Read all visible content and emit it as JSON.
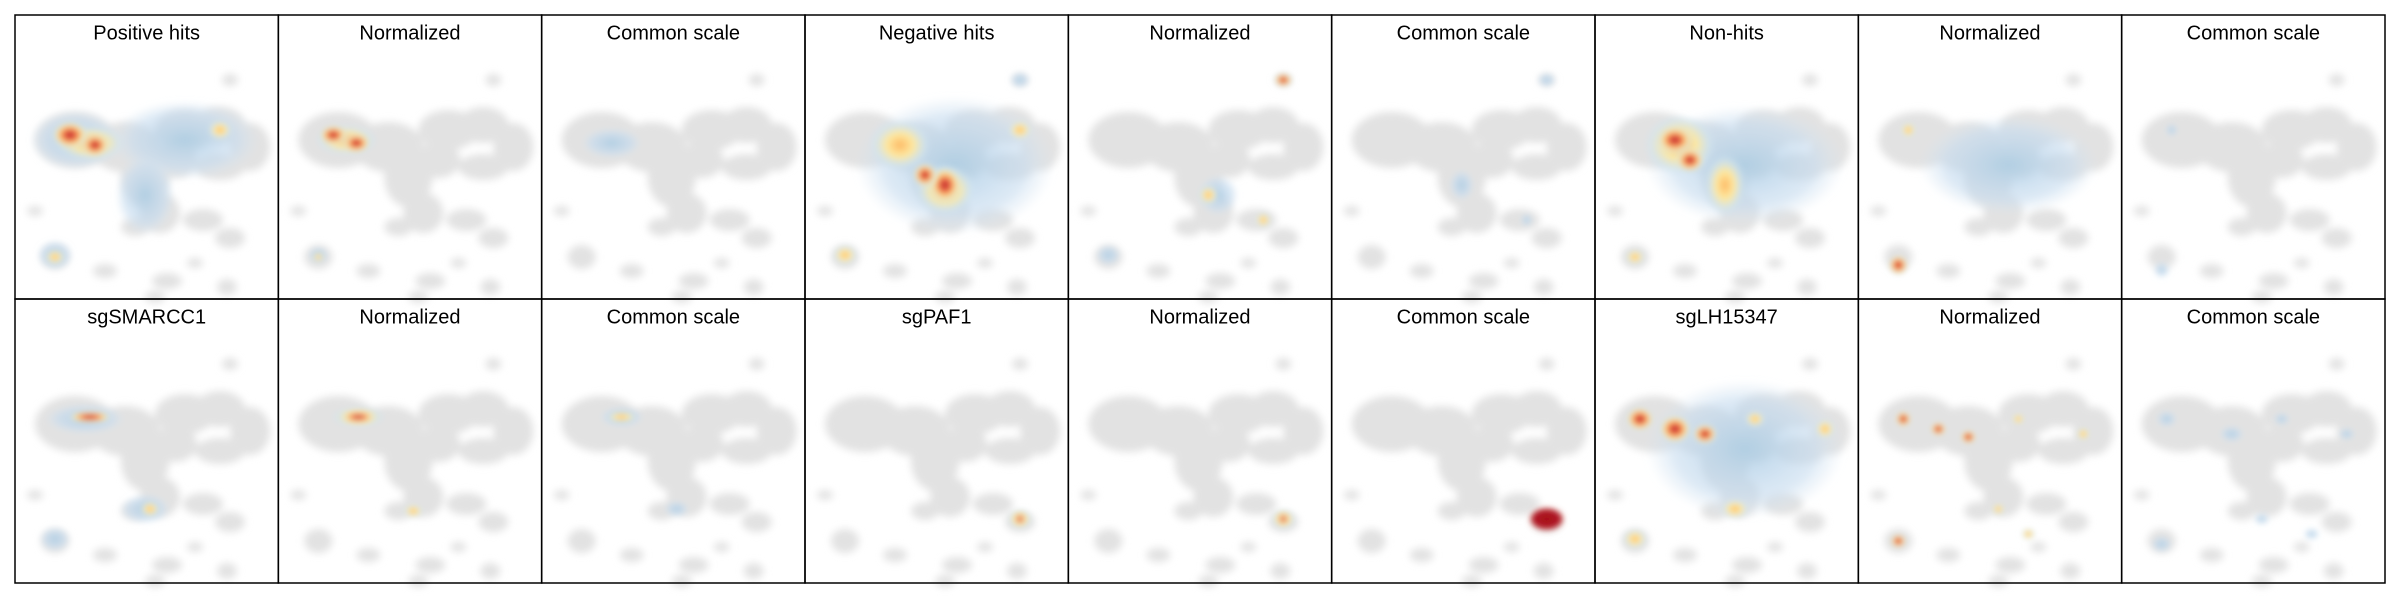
{
  "rows": [
    [
      "Positive hits",
      "Normalized",
      "Common scale",
      "Negative hits",
      "Normalized",
      "Common scale",
      "Non-hits",
      "Normalized",
      "Common scale"
    ],
    [
      "sgSMARCC1",
      "Normalized",
      "Common scale",
      "sgPAF1",
      "Normalized",
      "Common scale",
      "sgLH15347",
      "Normalized",
      "Common scale"
    ]
  ]
}
